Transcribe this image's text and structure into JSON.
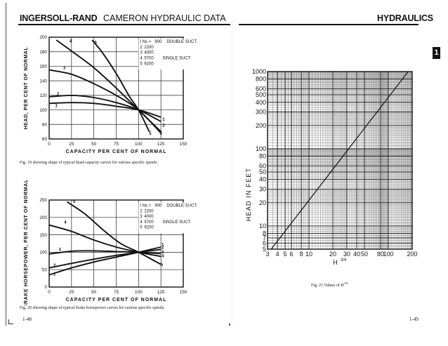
{
  "left_page": {
    "header_brand": "INGERSOLL-RAND",
    "header_title": "CAMERON HYDRAULIC DATA",
    "page_number": "1-48"
  },
  "right_page": {
    "header_title": "HYDRAULICS",
    "section_tab": "1",
    "page_number": "1-49"
  },
  "chart_data": [
    {
      "type": "line",
      "figure": "Fig. 19",
      "caption": "Fig. 19 showing shape of typical head-capacity curves for various specific speeds.",
      "xlabel": "CAPACITY PER CENT OF NORMAL",
      "ylabel": "HEAD, PER CENT OF NORMAL",
      "xlim": [
        0,
        150
      ],
      "ylim": [
        60,
        200
      ],
      "x_ticks": [
        "0",
        "25",
        "50",
        "75",
        "100",
        "125",
        "150"
      ],
      "y_ticks": [
        "60",
        "80",
        "100",
        "120",
        "140",
        "160",
        "180",
        "200"
      ],
      "legend_prefix": "I  Ns =",
      "legend": [
        {
          "num": "1",
          "value": "900",
          "desc": "DOUBLE SUCT."
        },
        {
          "num": "2",
          "value": "2200",
          "desc": ""
        },
        {
          "num": "3",
          "value": "4000",
          "desc": ""
        },
        {
          "num": "4",
          "value": "5700",
          "desc": "SINGLE SUCT."
        },
        {
          "num": "5",
          "value": "9200",
          "desc": ""
        }
      ],
      "series": [
        {
          "name": "1",
          "x": [
            0,
            25,
            50,
            75,
            100,
            125
          ],
          "y": [
            109,
            110,
            109,
            105,
            100,
            90
          ]
        },
        {
          "name": "2",
          "x": [
            0,
            25,
            50,
            75,
            100,
            125
          ],
          "y": [
            118,
            120,
            117,
            110,
            100,
            84
          ]
        },
        {
          "name": "3",
          "x": [
            0,
            25,
            50,
            75,
            100,
            125
          ],
          "y": [
            155,
            149,
            136,
            120,
            100,
            68
          ]
        },
        {
          "name": "4",
          "x": [
            8,
            25,
            50,
            75,
            100,
            125
          ],
          "y": [
            196,
            181,
            158,
            130,
            100,
            70
          ]
        },
        {
          "name": "5",
          "x": [
            48,
            60,
            75,
            90,
            100,
            112
          ],
          "y": [
            196,
            178,
            150,
            118,
            100,
            70
          ]
        }
      ],
      "curve_labels": [
        {
          "text": "1",
          "x": 8,
          "y": 104
        },
        {
          "text": "2",
          "x": 10,
          "y": 120
        },
        {
          "text": "3",
          "x": 17,
          "y": 156
        },
        {
          "text": "4",
          "x": 24,
          "y": 193
        },
        {
          "text": "5",
          "x": 52,
          "y": 191
        },
        {
          "text": "1",
          "x": 128,
          "y": 85
        },
        {
          "text": "2",
          "x": 128,
          "y": 77
        },
        {
          "text": "3",
          "x": 125,
          "y": 66
        },
        {
          "text": "5",
          "x": 113,
          "y": 66
        }
      ]
    },
    {
      "type": "line",
      "figure": "Fig. 20",
      "caption": "Fig. 20 showing shape of typical brake horsepower curves for various specific speeds.",
      "xlabel": "CAPACITY PER CENT OF NORMAL",
      "ylabel": "BRAKE HORSEPOWER, PER CENT OF NORMAL",
      "xlim": [
        0,
        150
      ],
      "ylim": [
        0,
        250
      ],
      "x_ticks": [
        "0",
        "25",
        "50",
        "75",
        "100",
        "125",
        "150"
      ],
      "y_ticks": [
        "0",
        "50",
        "100",
        "150",
        "200",
        "250"
      ],
      "legend_prefix": "I  Ns =",
      "legend": [
        {
          "num": "1",
          "value": "900",
          "desc": "DOUBLE SUCT."
        },
        {
          "num": "2",
          "value": "2200",
          "desc": ""
        },
        {
          "num": "3",
          "value": "4000",
          "desc": ""
        },
        {
          "num": "4",
          "value": "5700",
          "desc": "SINGLE SUCT."
        },
        {
          "num": "5",
          "value": "9200",
          "desc": ""
        }
      ],
      "series": [
        {
          "name": "1",
          "x": [
            0,
            25,
            50,
            75,
            100,
            125
          ],
          "y": [
            35,
            55,
            72,
            86,
            100,
            115
          ]
        },
        {
          "name": "2",
          "x": [
            0,
            25,
            50,
            75,
            100,
            125
          ],
          "y": [
            55,
            68,
            80,
            91,
            100,
            108
          ]
        },
        {
          "name": "3",
          "x": [
            0,
            25,
            50,
            75,
            100,
            125
          ],
          "y": [
            95,
            103,
            104,
            102,
            100,
            96
          ]
        },
        {
          "name": "4",
          "x": [
            0,
            25,
            50,
            75,
            100,
            125
          ],
          "y": [
            178,
            160,
            135,
            115,
            100,
            88
          ]
        },
        {
          "name": "5",
          "x": [
            20,
            40,
            60,
            80,
            100,
            125
          ],
          "y": [
            245,
            210,
            165,
            125,
            100,
            65
          ]
        }
      ],
      "curve_labels": [
        {
          "text": "1",
          "x": 6,
          "y": 33
        },
        {
          "text": "2",
          "x": 6,
          "y": 58
        },
        {
          "text": "3",
          "x": 12,
          "y": 104
        },
        {
          "text": "4",
          "x": 18,
          "y": 182
        },
        {
          "text": "5",
          "x": 28,
          "y": 242
        },
        {
          "text": "1",
          "x": 127,
          "y": 118
        },
        {
          "text": "2",
          "x": 127,
          "y": 110
        },
        {
          "text": "3",
          "x": 127,
          "y": 97
        },
        {
          "text": "4",
          "x": 127,
          "y": 86
        },
        {
          "text": "5",
          "x": 126,
          "y": 60
        }
      ]
    },
    {
      "type": "line",
      "figure": "Fig. 21",
      "caption": "Fig. 21 Values of H",
      "caption_exponent": "3/4",
      "xlabel": "H",
      "xlabel_exponent": "3/4",
      "ylabel": "HEAD IN FEET",
      "scale": "log-log",
      "xlim": [
        3,
        200
      ],
      "ylim": [
        5,
        1000
      ],
      "x_tick_values": [
        3,
        4,
        5,
        6,
        8,
        10,
        20,
        30,
        40,
        50,
        80,
        100,
        200
      ],
      "x_tick_labels": [
        "3",
        "4",
        "5",
        "6",
        "8",
        "10",
        "20",
        "30",
        "40",
        "50",
        "80",
        "100",
        "200"
      ],
      "y_tick_values": [
        5,
        6,
        7,
        8,
        10,
        20,
        30,
        40,
        50,
        60,
        80,
        100,
        200,
        300,
        400,
        500,
        600,
        800,
        1000
      ],
      "y_tick_labels": [
        "5",
        "6",
        "7",
        "8",
        "10",
        "20",
        "30",
        "40",
        "50",
        "60",
        "80",
        "100",
        "200",
        "300",
        "400",
        "500",
        "600",
        "800",
        "1000"
      ],
      "series": [
        {
          "name": "",
          "x": [
            3.34,
            5.62,
            10,
            17.8,
            31.6,
            56.2,
            100,
            177.8
          ],
          "y": [
            5,
            10,
            21.5,
            46.4,
            100,
            215,
            464,
            1000
          ]
        }
      ]
    }
  ]
}
